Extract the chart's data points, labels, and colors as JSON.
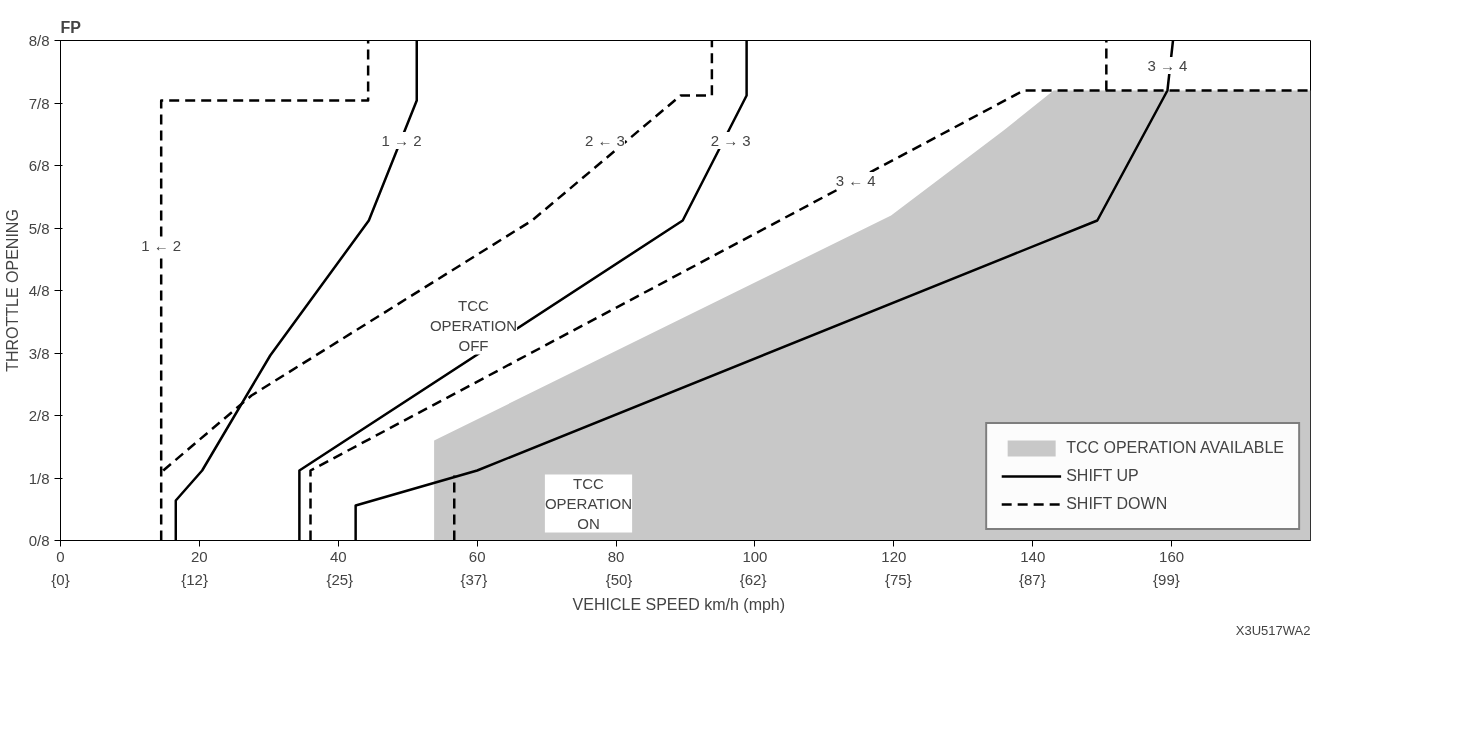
{
  "chart_data": {
    "type": "line",
    "title": "FP",
    "xlabel": "VEHICLE SPEED    km/h (mph)",
    "ylabel": "THROTTLE OPENING",
    "xlim": [
      0,
      180
    ],
    "ylim": [
      0,
      1
    ],
    "xticks": [
      0,
      20,
      40,
      60,
      80,
      100,
      120,
      140,
      160
    ],
    "x2lim": [
      0,
      111.9
    ],
    "x2ticks": [
      {
        "value": 0,
        "label": "{0}"
      },
      {
        "value": 12,
        "label": "{12}"
      },
      {
        "value": 25,
        "label": "{25}"
      },
      {
        "value": 37,
        "label": "{37}"
      },
      {
        "value": 50,
        "label": "{50}"
      },
      {
        "value": 62,
        "label": "{62}"
      },
      {
        "value": 75,
        "label": "{75}"
      },
      {
        "value": 87,
        "label": "{87}"
      },
      {
        "value": 99,
        "label": "{99}"
      }
    ],
    "yticks": [
      {
        "value": 0,
        "label": "0/8"
      },
      {
        "value": 0.125,
        "label": "1/8"
      },
      {
        "value": 0.25,
        "label": "2/8"
      },
      {
        "value": 0.375,
        "label": "3/8"
      },
      {
        "value": 0.5,
        "label": "4/8"
      },
      {
        "value": 0.625,
        "label": "5/8"
      },
      {
        "value": 0.75,
        "label": "6/8"
      },
      {
        "value": 0.875,
        "label": "7/8"
      },
      {
        "value": 1,
        "label": "8/8"
      }
    ],
    "grid": false,
    "legend": "bottom right",
    "marker": "none",
    "series": [
      {
        "name": "TCC OPERATION AVAILABLE",
        "type": "area",
        "color": "#c8c8c8",
        "x": [
          53.8,
          53.8,
          119.6,
          135.8,
          143.0,
          180
        ],
        "values": [
          0,
          0.2,
          0.65,
          0.82,
          0.9,
          0.9
        ]
      },
      {
        "name": "SHIFT UP",
        "line_style": "solid",
        "color": "#000000",
        "x": [
          16.6,
          16.6,
          20.4,
          30.2,
          44.4,
          51.3,
          51.3,
          null,
          34.4,
          34.4,
          89.6,
          98.8,
          98.8,
          null,
          42.5,
          42.5,
          60.0,
          149.3,
          159.4,
          160.2
        ],
        "values": [
          0,
          0.08,
          0.14,
          0.37,
          0.64,
          0.88,
          1,
          null,
          0,
          0.14,
          0.64,
          0.89,
          1,
          null,
          0,
          0.07,
          0.14,
          0.64,
          0.9,
          1
        ]
      },
      {
        "name": "SHIFT DOWN",
        "line_style": "dashed",
        "color": "#000000",
        "x": [
          14.5,
          14.5,
          44.3,
          44.3,
          null,
          14.8,
          27.5,
          67.9,
          89.3,
          93.8,
          93.8,
          null,
          36.0,
          36.0,
          138.7,
          180,
          null,
          150.6,
          150.6
        ],
        "values": [
          0,
          0.88,
          0.88,
          1,
          null,
          0.14,
          0.29,
          0.64,
          0.89,
          0.89,
          1,
          null,
          0,
          0.14,
          0.9,
          0.9,
          null,
          0.9,
          1
        ]
      },
      {
        "line_style": "dashed",
        "color": "#000000",
        "x": [
          56.7,
          56.7
        ],
        "values": [
          0,
          0.13
        ]
      }
    ],
    "annotations": [
      {
        "text": "1 → 2",
        "x": 49.1,
        "y": 0.8
      },
      {
        "text": "1 ← 2",
        "x": 14.5,
        "y": 0.59
      },
      {
        "text": "2 ← 3",
        "x": 78.4,
        "y": 0.8
      },
      {
        "text": "2 → 3",
        "x": 96.5,
        "y": 0.8
      },
      {
        "text": "3 ← 4",
        "x": 114.5,
        "y": 0.72
      },
      {
        "text": "3 → 4",
        "x": 159.4,
        "y": 0.95
      },
      "TCC\nOPERATION\nOFF",
      "TCC\nOPERATION\nON",
      "X3U517WA2"
    ]
  }
}
